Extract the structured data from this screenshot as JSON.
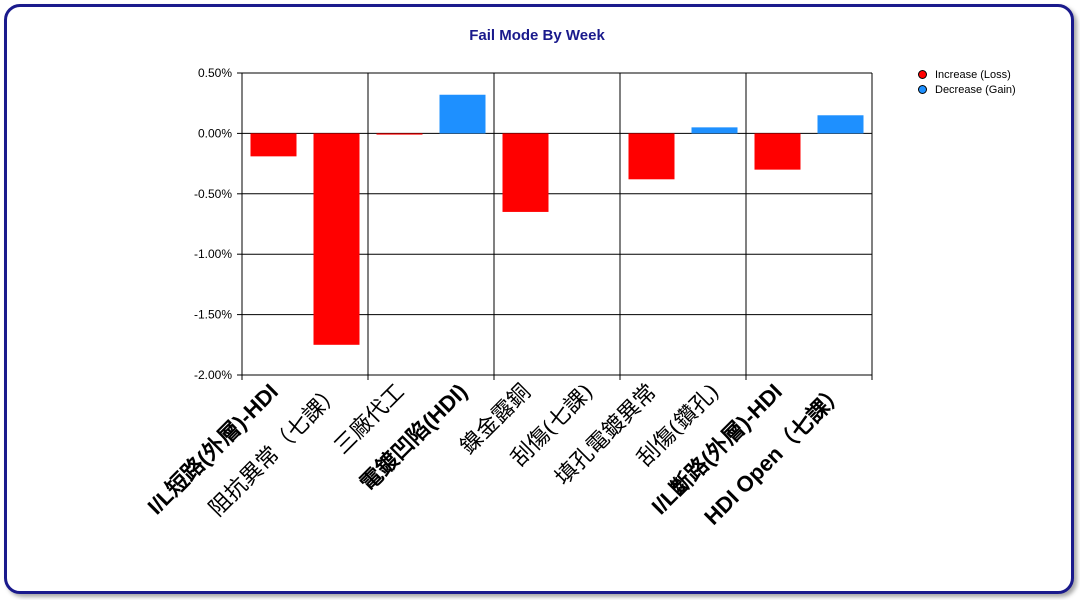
{
  "chart_data": {
    "type": "bar",
    "title": "Fail Mode By Week",
    "xlabel": "",
    "ylabel": "",
    "ylim": [
      -2.0,
      0.5
    ],
    "ytick_values": [
      0.5,
      0.0,
      -0.5,
      -1.0,
      -1.5,
      -2.0
    ],
    "yticks": [
      "0.50%",
      "0.00%",
      "-0.50%",
      "-1.00%",
      "-1.50%",
      "-2.00%"
    ],
    "grid": true,
    "legend_position": "top-right",
    "categories": [
      "I/L短路(外層)-HDI",
      "阻抗異常（七課）",
      "三廠代工",
      "電鍍凹陷(HDI)",
      "鎳金露銅",
      "刮傷(七課)",
      "填孔電鍍異常",
      "刮傷(鑽孔)",
      "I/L斷路(外層)-HDI",
      "HDI Open（七課）"
    ],
    "values": [
      -0.19,
      -1.75,
      -0.01,
      0.32,
      -0.65,
      0.0,
      -0.38,
      0.05,
      -0.3,
      0.15
    ],
    "series": [
      {
        "name": "Increase (Loss)",
        "color": "#ff0000"
      },
      {
        "name": "Decrease (Gain)",
        "color": "#1e90ff"
      }
    ]
  }
}
